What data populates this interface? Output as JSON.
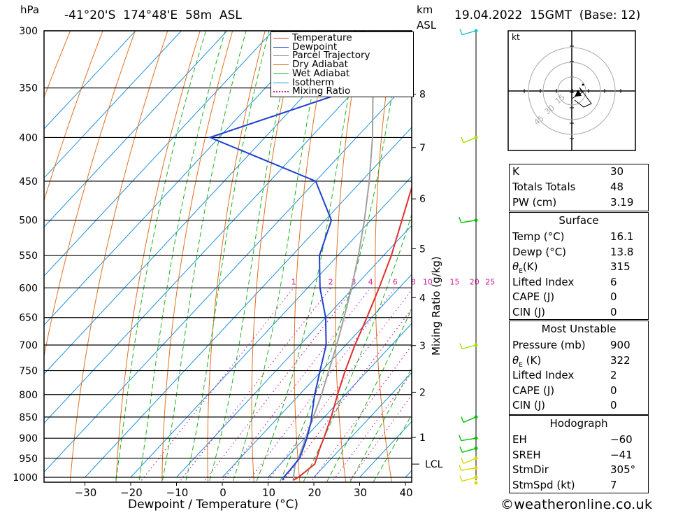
{
  "header": {
    "unit_hpa": "hPa",
    "location": "-41°20'S  174°48'E  58m  ASL",
    "unit_km": "km",
    "unit_asl": "ASL",
    "datetime": "19.04.2022  15GMT  (Base: 12)"
  },
  "legend": [
    {
      "label": "Temperature",
      "color": "#e03030",
      "style": "solid"
    },
    {
      "label": "Dewpoint",
      "color": "#2040d0",
      "style": "solid"
    },
    {
      "label": "Parcel Trajectory",
      "color": "#a0a0a0",
      "style": "solid"
    },
    {
      "label": "Dry Adiabat",
      "color": "#e07020",
      "style": "solid"
    },
    {
      "label": "Wet Adiabat",
      "color": "#20b020",
      "style": "solid"
    },
    {
      "label": "Isotherm",
      "color": "#2090e0",
      "style": "solid"
    },
    {
      "label": "Mixing Ratio",
      "color": "#d020a0",
      "style": "dotted"
    }
  ],
  "chart_data": {
    "type": "line",
    "chart_kind": "skew-T log-P sounding",
    "xlabel": "Dewpoint / Temperature (°C)",
    "ylabel_left": "hPa",
    "ylabel_right": "km ASL",
    "mixing_ratio_label": "Mixing Ratio (g/kg)",
    "x_ticks": [
      -30,
      -20,
      -10,
      0,
      10,
      20,
      30,
      40
    ],
    "pressure_levels": [
      300,
      350,
      400,
      450,
      500,
      550,
      600,
      650,
      700,
      750,
      800,
      850,
      900,
      950,
      1000
    ],
    "height_ticks_km": [
      1,
      2,
      3,
      4,
      5,
      6,
      7,
      8
    ],
    "lcl_label": "LCL",
    "lcl_pressure": 965,
    "mixing_ratio_values": [
      "1",
      "2",
      "3",
      "4",
      "6",
      "8",
      "10",
      "15",
      "20",
      "25"
    ],
    "series": [
      {
        "name": "Temperature",
        "color": "#e03030",
        "points": [
          [
            1008,
            16.1
          ],
          [
            1000,
            16.6
          ],
          [
            965,
            17.5
          ],
          [
            925,
            15.4
          ],
          [
            900,
            14.2
          ],
          [
            850,
            11.5
          ],
          [
            800,
            8.3
          ],
          [
            750,
            5.1
          ],
          [
            700,
            2.0
          ],
          [
            650,
            -1.0
          ],
          [
            600,
            -4.4
          ],
          [
            550,
            -8.3
          ],
          [
            500,
            -13.2
          ],
          [
            450,
            -18.6
          ],
          [
            400,
            -25.2
          ],
          [
            380,
            -28.6
          ],
          [
            350,
            -34.2
          ],
          [
            300,
            -43.0
          ]
        ]
      },
      {
        "name": "Dewpoint",
        "color": "#2040d0",
        "points": [
          [
            1008,
            13.8
          ],
          [
            1000,
            13.4
          ],
          [
            980,
            13.3
          ],
          [
            950,
            13.0
          ],
          [
            925,
            11.8
          ],
          [
            900,
            10.5
          ],
          [
            860,
            8.0
          ],
          [
            850,
            7.2
          ],
          [
            800,
            3.3
          ],
          [
            750,
            -0.4
          ],
          [
            700,
            -4.3
          ],
          [
            650,
            -10.0
          ],
          [
            600,
            -17.3
          ],
          [
            550,
            -24.0
          ],
          [
            500,
            -28.6
          ],
          [
            450,
            -40.0
          ],
          [
            400,
            -72.0
          ],
          [
            350,
            -50.0
          ],
          [
            300,
            -62.0
          ]
        ]
      },
      {
        "name": "Parcel Trajectory",
        "color": "#a0a0a0",
        "points": [
          [
            1008,
            16.1
          ],
          [
            965,
            13.2
          ],
          [
            950,
            12.8
          ],
          [
            900,
            10.2
          ],
          [
            850,
            7.6
          ],
          [
            800,
            4.8
          ],
          [
            750,
            1.5
          ],
          [
            700,
            -2.0
          ],
          [
            650,
            -6.0
          ],
          [
            600,
            -10.4
          ],
          [
            550,
            -15.5
          ],
          [
            500,
            -21.4
          ],
          [
            450,
            -28.3
          ],
          [
            400,
            -36.5
          ],
          [
            350,
            -46.5
          ],
          [
            300,
            -58.0
          ]
        ]
      }
    ],
    "dry_adiabat_thetas_K": [
      210,
      220,
      230,
      240,
      250,
      260,
      270,
      280,
      290,
      300,
      310,
      320,
      330,
      340,
      350,
      360,
      370,
      380,
      390,
      400,
      410,
      420,
      430,
      440
    ],
    "wet_adiabat_start_temps_C": [
      -20,
      -15,
      -10,
      -5,
      0,
      5,
      10,
      15,
      20,
      25,
      30,
      35
    ],
    "isotherms_C": [
      -110,
      -100,
      -90,
      -80,
      -70,
      -60,
      -50,
      -40,
      -30,
      -20,
      -10,
      0,
      10,
      20,
      30,
      40
    ],
    "wind_barbs": [
      {
        "pressure": 1000,
        "color": "#d8d800"
      },
      {
        "pressure": 975,
        "color": "#d8d800"
      },
      {
        "pressure": 950,
        "color": "#d8d800"
      },
      {
        "pressure": 925,
        "color": "#00c000"
      },
      {
        "pressure": 900,
        "color": "#00c000"
      },
      {
        "pressure": 850,
        "color": "#00c000"
      },
      {
        "pressure": 700,
        "color": "#a0e000"
      },
      {
        "pressure": 500,
        "color": "#00c000"
      },
      {
        "pressure": 400,
        "color": "#a0e000"
      },
      {
        "pressure": 300,
        "color": "#20c0c0"
      }
    ]
  },
  "hodograph": {
    "unit": "kt",
    "ring_labels": [
      "15",
      "30",
      "45"
    ]
  },
  "indices": {
    "k_label": "K",
    "k_value": "30",
    "tt_label": "Totals Totals",
    "tt_value": "48",
    "pw_label": "PW (cm)",
    "pw_value": "3.19"
  },
  "surface": {
    "title": "Surface",
    "rows": [
      {
        "label": "Temp (°C)",
        "value": "16.1"
      },
      {
        "label": "Dewp (°C)",
        "value": "13.8"
      },
      {
        "label": "θE(K)",
        "value": "315"
      },
      {
        "label": "Lifted Index",
        "value": "6"
      },
      {
        "label": "CAPE (J)",
        "value": "0"
      },
      {
        "label": "CIN (J)",
        "value": "0"
      }
    ]
  },
  "most_unstable": {
    "title": "Most Unstable",
    "rows": [
      {
        "label": "Pressure (mb)",
        "value": "900"
      },
      {
        "label": "θE (K)",
        "value": "322"
      },
      {
        "label": "Lifted Index",
        "value": "2"
      },
      {
        "label": "CAPE (J)",
        "value": "0"
      },
      {
        "label": "CIN (J)",
        "value": "0"
      }
    ]
  },
  "hodograph_table": {
    "title": "Hodograph",
    "rows": [
      {
        "label": "EH",
        "value": "-60"
      },
      {
        "label": "SREH",
        "value": "-41"
      },
      {
        "label": "StmDir",
        "value": "305°"
      },
      {
        "label": "StmSpd (kt)",
        "value": "7"
      }
    ]
  },
  "footer": {
    "copyright": "©weatheronline.co.uk"
  }
}
